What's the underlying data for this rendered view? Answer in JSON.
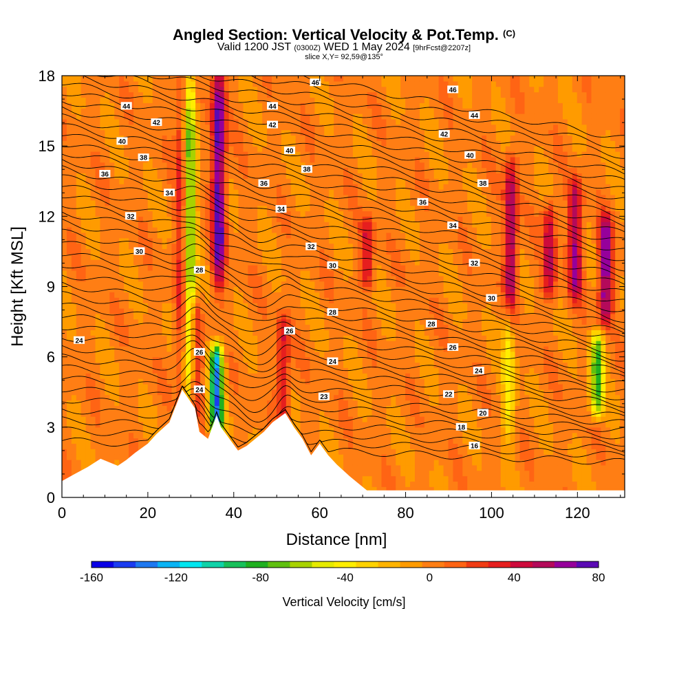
{
  "title": {
    "main": "Angled Section: Vertical Velocity & Pot.Temp.",
    "main_suffix": "(C)",
    "valid_prefix": "Valid 1200 JST",
    "valid_zulu": "(0300Z)",
    "valid_date": "WED 1 May 2024",
    "valid_fcst": "[9hrFcst@2207z]",
    "slice": "slice X,Y= 92,59@135°"
  },
  "chart_data": {
    "type": "heatmap",
    "xlabel": "Distance [nm]",
    "ylabel": "Height [Kft MSL]",
    "xlim": [
      0,
      131
    ],
    "ylim": [
      0,
      18
    ],
    "x_ticks": [
      0,
      20,
      40,
      60,
      80,
      100,
      120
    ],
    "y_ticks": [
      0,
      3,
      6,
      9,
      12,
      15,
      18
    ],
    "background_value_cm_s": 0,
    "colorbar": {
      "label": "Vertical Velocity [cm/s]",
      "min": -160,
      "max": 80,
      "tick_values": [
        -160,
        -120,
        -80,
        -40,
        0,
        40,
        80
      ],
      "colors": [
        "#0a00e6",
        "#1b3cf0",
        "#1e78f0",
        "#0ab4f5",
        "#00e6f0",
        "#0fd2a8",
        "#18c05a",
        "#20b020",
        "#60c010",
        "#a8d200",
        "#e6eb00",
        "#ffee00",
        "#ffd200",
        "#ffb400",
        "#ff9b00",
        "#ff7e14",
        "#ff6414",
        "#f03c14",
        "#e61e1e",
        "#cd0a3c",
        "#b40a5a",
        "#96009b",
        "#5a0ab4"
      ]
    },
    "terrain_kft": [
      [
        0,
        0.7
      ],
      [
        3,
        1.0
      ],
      [
        6,
        1.3
      ],
      [
        9,
        1.65
      ],
      [
        13,
        1.35
      ],
      [
        15,
        1.6
      ],
      [
        17,
        1.9
      ],
      [
        20,
        2.3
      ],
      [
        22,
        2.7
      ],
      [
        25,
        3.2
      ],
      [
        28,
        4.6
      ],
      [
        31,
        3.8
      ],
      [
        32,
        2.8
      ],
      [
        34,
        2.5
      ],
      [
        36,
        3.5
      ],
      [
        37,
        3.0
      ],
      [
        39,
        2.5
      ],
      [
        41,
        2.0
      ],
      [
        43,
        2.2
      ],
      [
        45,
        2.5
      ],
      [
        47,
        2.8
      ],
      [
        49,
        3.2
      ],
      [
        52,
        3.6
      ],
      [
        54,
        3.0
      ],
      [
        56,
        2.5
      ],
      [
        58,
        1.8
      ],
      [
        60,
        2.3
      ],
      [
        62,
        1.8
      ],
      [
        64,
        1.4
      ],
      [
        67,
        0.9
      ],
      [
        69,
        0.6
      ],
      [
        71,
        0.3
      ],
      [
        131,
        0.3
      ]
    ],
    "vertical_velocity_features": [
      {
        "x": 28,
        "z_range": [
          5,
          18
        ],
        "peak_cm_s": 40
      },
      {
        "x": 31,
        "z_range": [
          4,
          8
        ],
        "peak_cm_s": 40
      },
      {
        "x": 29.7,
        "z_range": [
          4.5,
          18
        ],
        "peak_cm_s": -80
      },
      {
        "x": 36,
        "z_range": [
          3,
          6
        ],
        "peak_cm_s": -130
      },
      {
        "x": 36.5,
        "z_range": [
          9.5,
          18
        ],
        "peak_cm_s": 80
      },
      {
        "x": 51.5,
        "z_range": [
          3.5,
          7.3
        ],
        "peak_cm_s": 40
      },
      {
        "x": 71,
        "z_range": [
          9.5,
          11.5
        ],
        "peak_cm_s": 40
      },
      {
        "x": 104.5,
        "z_range": [
          8,
          14
        ],
        "peak_cm_s": 60
      },
      {
        "x": 113.5,
        "z_range": [
          9,
          12
        ],
        "peak_cm_s": 50
      },
      {
        "x": 119.5,
        "z_range": [
          9,
          13
        ],
        "peak_cm_s": 60
      },
      {
        "x": 126.5,
        "z_range": [
          8,
          11.5
        ],
        "peak_cm_s": 70
      },
      {
        "x": 124.5,
        "z_range": [
          4,
          6.5
        ],
        "peak_cm_s": -80
      },
      {
        "x": 104,
        "z_range": [
          3,
          8
        ],
        "peak_cm_s": -40
      }
    ],
    "isentrope_values_c": [
      16,
      18,
      20,
      22,
      23,
      24,
      26,
      28,
      30,
      32,
      34,
      36,
      38,
      40,
      42,
      44,
      46
    ],
    "contour_labels": [
      {
        "text": "46",
        "x": 59,
        "z": 17.7
      },
      {
        "text": "46",
        "x": 91,
        "z": 17.4
      },
      {
        "text": "44",
        "x": 15,
        "z": 16.7
      },
      {
        "text": "44",
        "x": 49,
        "z": 16.7
      },
      {
        "text": "44",
        "x": 96,
        "z": 16.3
      },
      {
        "text": "42",
        "x": 22,
        "z": 16.0
      },
      {
        "text": "42",
        "x": 49,
        "z": 15.9
      },
      {
        "text": "42",
        "x": 89,
        "z": 15.5
      },
      {
        "text": "40",
        "x": 14,
        "z": 15.2
      },
      {
        "text": "40",
        "x": 53,
        "z": 14.8
      },
      {
        "text": "40",
        "x": 95,
        "z": 14.6
      },
      {
        "text": "38",
        "x": 19,
        "z": 14.5
      },
      {
        "text": "38",
        "x": 57,
        "z": 14.0
      },
      {
        "text": "38",
        "x": 98,
        "z": 13.4
      },
      {
        "text": "36",
        "x": 10,
        "z": 13.8
      },
      {
        "text": "36",
        "x": 47,
        "z": 13.4
      },
      {
        "text": "36",
        "x": 84,
        "z": 12.6
      },
      {
        "text": "34",
        "x": 25,
        "z": 13.0
      },
      {
        "text": "34",
        "x": 51,
        "z": 12.3
      },
      {
        "text": "34",
        "x": 91,
        "z": 11.6
      },
      {
        "text": "32",
        "x": 16,
        "z": 12.0
      },
      {
        "text": "32",
        "x": 58,
        "z": 10.7
      },
      {
        "text": "32",
        "x": 96,
        "z": 10.0
      },
      {
        "text": "30",
        "x": 18,
        "z": 10.5
      },
      {
        "text": "30",
        "x": 63,
        "z": 9.9
      },
      {
        "text": "30",
        "x": 100,
        "z": 8.5
      },
      {
        "text": "28",
        "x": 32,
        "z": 9.7
      },
      {
        "text": "28",
        "x": 63,
        "z": 7.9
      },
      {
        "text": "28",
        "x": 86,
        "z": 7.4
      },
      {
        "text": "26",
        "x": 53,
        "z": 7.1
      },
      {
        "text": "26",
        "x": 32,
        "z": 6.2
      },
      {
        "text": "26",
        "x": 91,
        "z": 6.4
      },
      {
        "text": "24",
        "x": 4,
        "z": 6.7
      },
      {
        "text": "24",
        "x": 63,
        "z": 5.8
      },
      {
        "text": "24",
        "x": 97,
        "z": 5.4
      },
      {
        "text": "24",
        "x": 32,
        "z": 4.6
      },
      {
        "text": "23",
        "x": 61,
        "z": 4.3
      },
      {
        "text": "22",
        "x": 90,
        "z": 4.4
      },
      {
        "text": "20",
        "x": 98,
        "z": 3.6
      },
      {
        "text": "18",
        "x": 93,
        "z": 3.0
      },
      {
        "text": "16",
        "x": 96,
        "z": 2.2
      }
    ]
  }
}
